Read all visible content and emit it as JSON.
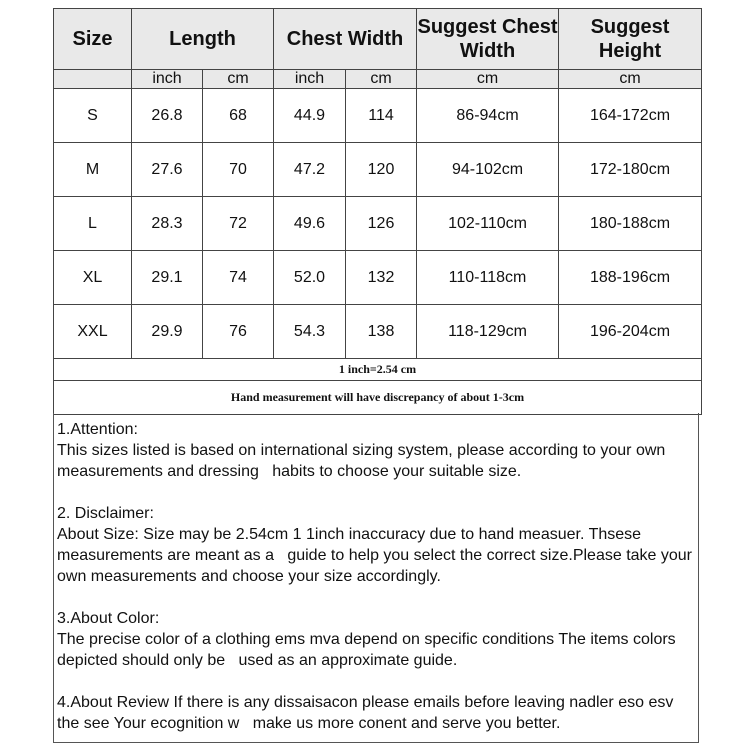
{
  "headers": {
    "size": "Size",
    "length": "Length",
    "chest": "Chest Width",
    "suggest_chest": "Suggest Chest Width",
    "suggest_height": "Suggest Height"
  },
  "units": [
    "inch",
    "cm",
    "inch",
    "cm",
    "cm",
    "cm"
  ],
  "rows": [
    [
      "S",
      "26.8",
      "68",
      "44.9",
      "114",
      "86-94cm",
      "164-172cm"
    ],
    [
      "M",
      "27.6",
      "70",
      "47.2",
      "120",
      "94-102cm",
      "172-180cm"
    ],
    [
      "L",
      "28.3",
      "72",
      "49.6",
      "126",
      "102-110cm",
      "180-188cm"
    ],
    [
      "XL",
      "29.1",
      "74",
      "52.0",
      "132",
      "110-118cm",
      "188-196cm"
    ],
    [
      "XXL",
      "29.9",
      "76",
      "54.3",
      "138",
      "118-129cm",
      "196-204cm"
    ]
  ],
  "conversion": "1 inch=2.54 cm",
  "hand_note": "Hand measurement will have discrepancy of about 1-3cm",
  "notes": [
    {
      "title": "1.Attention:",
      "body": "This sizes listed is based on international sizing system, please according to your own measurements and dressing   habits to choose your suitable size."
    },
    {
      "title": "2. Disclaimer:",
      "body": "About Size: Size may be 2.54cm 1 1inch inaccuracy due to hand measuer. Thsese measurements are meant as a   guide to help you select the correct size.Please take your own measurements and choose your size accordingly."
    },
    {
      "title": "3.About Color:",
      "body": "The precise color of a clothing ems mva depend on specific conditions The items colors depicted should only be   used as an approximate guide."
    },
    {
      "title": "",
      "body": "4.About Review If there is any dissaisacon please emails before leaving nadler eso esv the see Your ecognition w   make us more conent and serve you better."
    }
  ]
}
